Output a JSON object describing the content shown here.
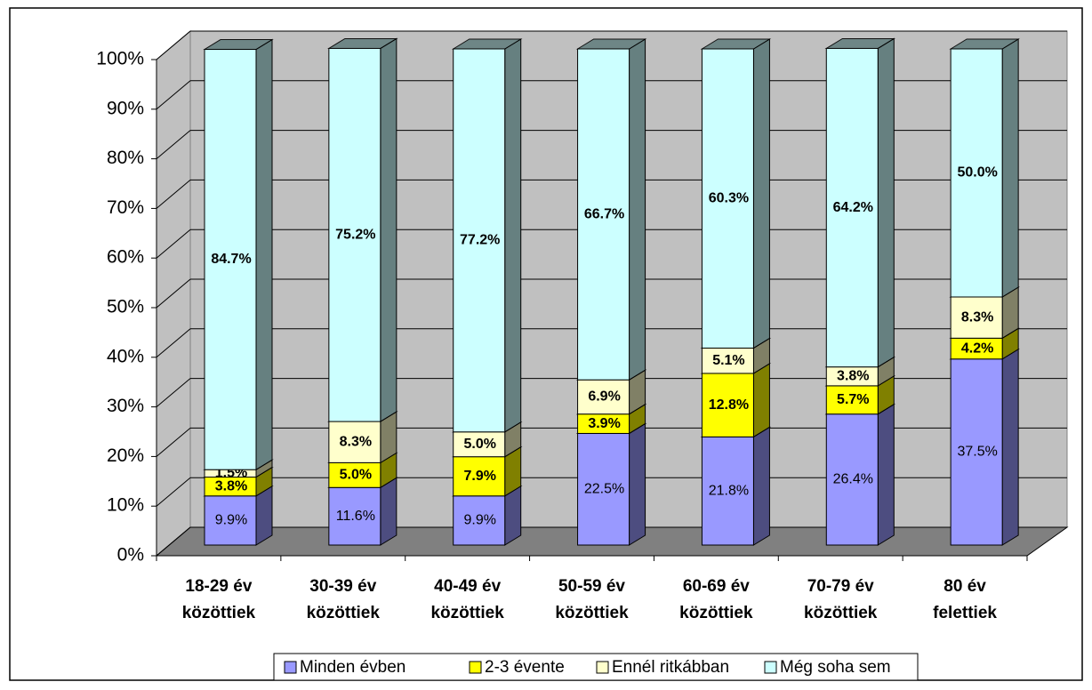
{
  "chart_data": {
    "type": "bar3d_stacked",
    "categories": [
      "18-29 év közöttiek",
      "30-39 év közöttiek",
      "40-49 év közöttiek",
      "50-59 év közöttiek",
      "60-69 év közöttiek",
      "70-79 év közöttiek",
      "80 év felettiek"
    ],
    "series": [
      {
        "name": "Minden évben",
        "color": "#9999ff",
        "side": "#4d4d80",
        "values": [
          9.9,
          11.6,
          9.9,
          22.5,
          21.8,
          26.4,
          37.5
        ],
        "value_labels": [
          "9.9%",
          "11.6%",
          "9.9%",
          "22.5%",
          "21.8%",
          "26.4%",
          "37.5%"
        ]
      },
      {
        "name": "2-3 évente",
        "color": "#ffff00",
        "side": "#808000",
        "values": [
          3.8,
          5.0,
          7.9,
          3.9,
          12.8,
          5.7,
          4.2
        ],
        "value_labels": [
          "3.8%",
          "5.0%",
          "7.9%",
          "3.9%",
          "12.8%",
          "5.7%",
          "4.2%"
        ]
      },
      {
        "name": "Ennél ritkábban",
        "color": "#ffffcc",
        "side": "#808066",
        "values": [
          1.5,
          8.3,
          5.0,
          6.9,
          5.1,
          3.8,
          8.3
        ],
        "value_labels": [
          "1.5%",
          "8.3%",
          "5.0%",
          "6.9%",
          "5.1%",
          "3.8%",
          "8.3%"
        ]
      },
      {
        "name": "Még soha sem",
        "color": "#ccffff",
        "side": "#668080",
        "values": [
          84.7,
          75.2,
          77.2,
          66.7,
          60.3,
          64.2,
          50.0
        ],
        "value_labels": [
          "84.7%",
          "75.2%",
          "77.2%",
          "66.7%",
          "60.3%",
          "64.2%",
          "50.0%"
        ]
      }
    ],
    "ylim": [
      0,
      100
    ],
    "yticks": [
      {
        "value": 0,
        "label": "0%"
      },
      {
        "value": 10,
        "label": "10%"
      },
      {
        "value": 20,
        "label": "20%"
      },
      {
        "value": 30,
        "label": "30%"
      },
      {
        "value": 40,
        "label": "40%"
      },
      {
        "value": 50,
        "label": "50%"
      },
      {
        "value": 60,
        "label": "60%"
      },
      {
        "value": 70,
        "label": "70%"
      },
      {
        "value": 80,
        "label": "80%"
      },
      {
        "value": 90,
        "label": "90%"
      },
      {
        "value": 100,
        "label": "100%"
      }
    ],
    "grid": true,
    "legend": "bottom"
  }
}
